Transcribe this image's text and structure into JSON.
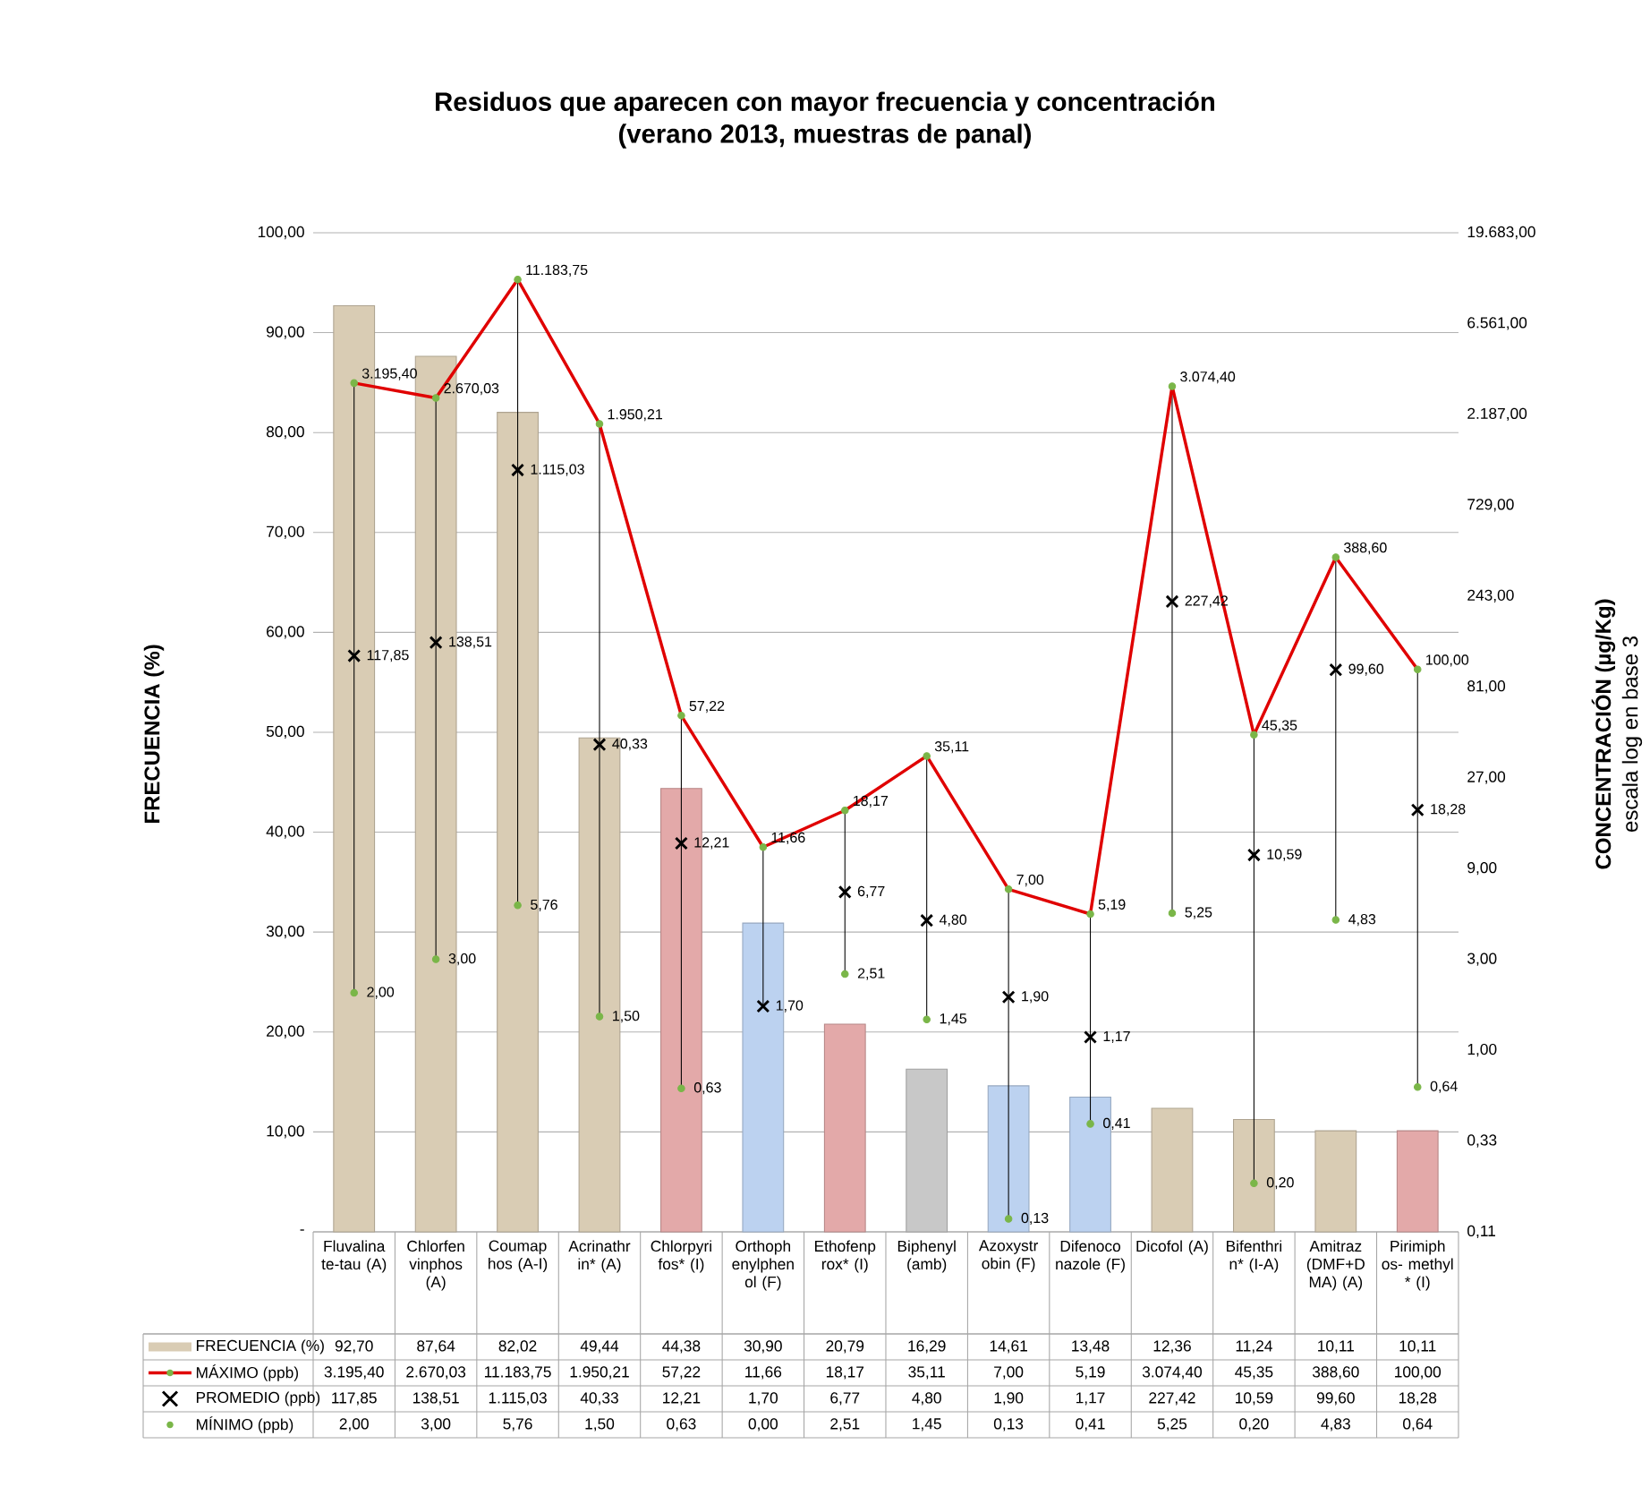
{
  "chart_data": {
    "type": "bar",
    "title": "Residuos que aparecen con mayor frecuencia y concentración",
    "subtitle": "(verano 2013, muestras de panal)",
    "ylabel": "FRECUENCIA (%)",
    "y2label": "CONCENTRACIÓN  (µg/Kg)",
    "annotations": [
      "escala log en  base 3"
    ],
    "categories": [
      "Fluvalina te-tau (A)",
      "Chlorfen vinphos (A)",
      "Coumap hos (A-I)",
      "Acrinathr in* (A)",
      "Chlorpyri fos* (I)",
      "Orthoph enylphen ol (F)",
      "Ethofenp rox* (I)",
      "Biphenyl (amb)",
      "Azoxystr obin (F)",
      "Difenoco nazole (F)",
      "Dicofol (A)",
      "Bifenthri n* (I-A)",
      "Amitraz (DMF+D MA) (A)",
      "Pirimiph os- methyl * (I)"
    ],
    "series": [
      {
        "name": "FRECUENCIA (%)",
        "type": "bar",
        "color": "#d9ccb4",
        "colors": [
          "#d9ccb4",
          "#d9ccb4",
          "#d9ccb4",
          "#d9ccb4",
          "#e3a9a9",
          "#bcd2f0",
          "#e3a9a9",
          "#c8c8c8",
          "#bcd2f0",
          "#bcd2f0",
          "#d9ccb4",
          "#d9ccb4",
          "#d9ccb4",
          "#e3a9a9"
        ],
        "values": [
          92.7,
          87.64,
          82.02,
          49.44,
          44.38,
          30.9,
          20.79,
          16.29,
          14.61,
          13.48,
          12.36,
          11.24,
          10.11,
          10.11
        ],
        "value_labels": [
          "92,70",
          "87,64",
          "82,02",
          "49,44",
          "44,38",
          "30,90",
          "20,79",
          "16,29",
          "14,61",
          "13,48",
          "12,36",
          "11,24",
          "10,11",
          "10,11"
        ]
      },
      {
        "name": "MÁXIMO (ppb)",
        "type": "line",
        "axis": "y2",
        "color": "#e00000",
        "marker": "circle",
        "colors": [
          "#7ab648",
          "#7ab648",
          "#7ab648",
          "#7ab648",
          "#7ab648",
          "#7ab648",
          "#7ab648",
          "#7ab648",
          "#7ab648",
          "#7ab648",
          "#7ab648",
          "#7ab648",
          "#7ab648",
          "#7ab648"
        ],
        "values": [
          3195.4,
          2670.03,
          11183.75,
          1950.21,
          57.22,
          11.66,
          18.17,
          35.11,
          7.0,
          5.19,
          3074.4,
          45.35,
          388.6,
          100.0
        ],
        "value_labels": [
          "3.195,40",
          "2.670,03",
          "11.183,75",
          "1.950,21",
          "57,22",
          "11,66",
          "18,17",
          "35,11",
          "7,00",
          "5,19",
          "3.074,40",
          "45,35",
          "388,60",
          "100,00"
        ]
      },
      {
        "name": "PROMEDIO (ppb)",
        "type": "scatter",
        "axis": "y2",
        "color": "#000000",
        "marker": "cross",
        "values": [
          117.85,
          138.51,
          1115.03,
          40.33,
          12.21,
          1.7,
          6.77,
          4.8,
          1.9,
          1.17,
          227.42,
          10.59,
          99.6,
          18.28
        ],
        "value_labels": [
          "117,85",
          "138,51",
          "1.115,03",
          "40,33",
          "12,21",
          "1,70",
          "6,77",
          "4,80",
          "1,90",
          "1,17",
          "227,42",
          "10,59",
          "99,60",
          "18,28"
        ]
      },
      {
        "name": "MÍNIMO (ppb)",
        "type": "scatter",
        "axis": "y2",
        "color": "#7ab648",
        "marker": "circle",
        "values": [
          2.0,
          3.0,
          5.76,
          1.5,
          0.63,
          null,
          2.51,
          1.45,
          0.13,
          0.41,
          5.25,
          0.2,
          4.83,
          0.64
        ],
        "value_labels": [
          "2,00",
          "3,00",
          "5,76",
          "1,50",
          "0,63",
          "0,00",
          "2,51",
          "1,45",
          "0,13",
          "0,41",
          "5,25",
          "0,20",
          "4,83",
          "0,64"
        ]
      }
    ],
    "ylim": [
      0,
      100
    ],
    "yticks": [
      {
        "value": 0,
        "label": "-"
      },
      {
        "value": 10,
        "label": "10,00"
      },
      {
        "value": 20,
        "label": "20,00"
      },
      {
        "value": 30,
        "label": "30,00"
      },
      {
        "value": 40,
        "label": "40,00"
      },
      {
        "value": 50,
        "label": "50,00"
      },
      {
        "value": 60,
        "label": "60,00"
      },
      {
        "value": 70,
        "label": "70,00"
      },
      {
        "value": 80,
        "label": "80,00"
      },
      {
        "value": 90,
        "label": "90,00"
      },
      {
        "value": 100,
        "label": "100,00"
      }
    ],
    "y2lim": [
      0.1111,
      19683
    ],
    "y2ticks": [
      {
        "value": 0.1111,
        "label": "0,11"
      },
      {
        "value": 0.3333,
        "label": "0,33"
      },
      {
        "value": 1,
        "label": "1,00"
      },
      {
        "value": 3,
        "label": "3,00"
      },
      {
        "value": 9,
        "label": "9,00"
      },
      {
        "value": 27,
        "label": "27,00"
      },
      {
        "value": 81,
        "label": "81,00"
      },
      {
        "value": 243,
        "label": "243,00"
      },
      {
        "value": 729,
        "label": "729,00"
      },
      {
        "value": 2187,
        "label": "2.187,00"
      },
      {
        "value": 6561,
        "label": "6.561,00"
      },
      {
        "value": 19683,
        "label": "19.683,00"
      }
    ],
    "log": "y2",
    "grid": "y",
    "legend": "bottom"
  }
}
